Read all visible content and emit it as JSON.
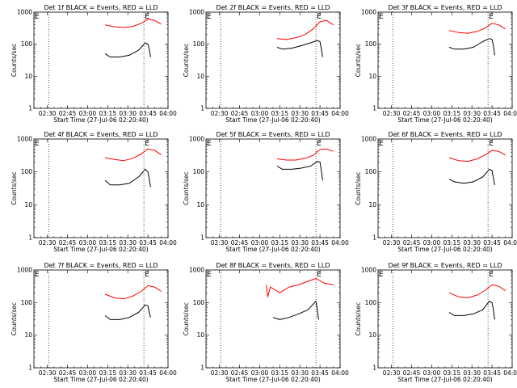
{
  "chart_data": [
    {
      "type": "line",
      "title": "Det 1f BLACK = Events, RED = LLD",
      "ylabel": "Counts/sec",
      "xlabel": "Start Time (27-Jul-06 02:20:40)",
      "x_ticks": [
        "02:30",
        "02:45",
        "03:00",
        "03:15",
        "03:30",
        "03:45",
        "04:00"
      ],
      "y_ticks": [
        "1",
        "10",
        "100",
        "1000"
      ],
      "yscale": "log",
      "ylim": [
        1,
        1000
      ],
      "xlim": [
        "02:20",
        "04:00"
      ],
      "markers": [
        "E",
        "E"
      ],
      "vlines": [
        "02:31",
        "03:42"
      ],
      "series": [
        {
          "color": "#ff0000",
          "x": [
            "03:13",
            "03:20",
            "03:27",
            "03:34",
            "03:40",
            "03:45",
            "03:50",
            "03:55"
          ],
          "y": [
            400,
            350,
            330,
            360,
            450,
            600,
            550,
            420
          ]
        },
        {
          "color": "#000000",
          "x": [
            "03:13",
            "03:17",
            "03:24",
            "03:31",
            "03:38",
            "03:43",
            "03:45",
            "03:46",
            "03:47"
          ],
          "y": [
            50,
            40,
            40,
            45,
            65,
            110,
            100,
            70,
            40
          ]
        }
      ]
    },
    {
      "type": "line",
      "title": "Det 2f BLACK = Events, RED = LLD",
      "ylabel": "Counts/sec",
      "xlabel": "Start Time (27-Jul-06 02:20:40)",
      "x_ticks": [
        "02:30",
        "02:45",
        "03:00",
        "03:15",
        "03:30",
        "03:45",
        "04:00"
      ],
      "y_ticks": [
        "1",
        "10",
        "100",
        "1000"
      ],
      "yscale": "log",
      "ylim": [
        1,
        1000
      ],
      "xlim": [
        "02:20",
        "04:00"
      ],
      "markers": [
        "E",
        "E"
      ],
      "vlines": [
        "02:31",
        "03:42"
      ],
      "series": [
        {
          "color": "#ff0000",
          "x": [
            "03:13",
            "03:20",
            "03:27",
            "03:34",
            "03:40",
            "03:45",
            "03:50",
            "03:55"
          ],
          "y": [
            150,
            140,
            160,
            200,
            300,
            500,
            550,
            400
          ]
        },
        {
          "color": "#000000",
          "x": [
            "03:13",
            "03:17",
            "03:24",
            "03:31",
            "03:38",
            "03:43",
            "03:45",
            "03:46",
            "03:47"
          ],
          "y": [
            80,
            70,
            75,
            90,
            110,
            130,
            120,
            70,
            40
          ]
        }
      ]
    },
    {
      "type": "line",
      "title": "Det 3f BLACK = Events, RED = LLD",
      "ylabel": "Counts/sec",
      "xlabel": "Start Time (27-Jul-06 02:20:40)",
      "x_ticks": [
        "02:30",
        "02:45",
        "03:00",
        "03:15",
        "03:30",
        "03:45",
        "04:00"
      ],
      "y_ticks": [
        "1",
        "10",
        "100",
        "1000"
      ],
      "yscale": "log",
      "ylim": [
        1,
        1000
      ],
      "xlim": [
        "02:20",
        "04:00"
      ],
      "markers": [
        "E",
        "E"
      ],
      "vlines": [
        "02:31",
        "03:42"
      ],
      "series": [
        {
          "color": "#ff0000",
          "x": [
            "03:13",
            "03:20",
            "03:27",
            "03:34",
            "03:40",
            "03:45",
            "03:50",
            "03:55"
          ],
          "y": [
            270,
            230,
            220,
            250,
            320,
            450,
            400,
            300
          ]
        },
        {
          "color": "#000000",
          "x": [
            "03:13",
            "03:17",
            "03:24",
            "03:31",
            "03:38",
            "03:43",
            "03:45",
            "03:46",
            "03:47"
          ],
          "y": [
            80,
            70,
            70,
            80,
            120,
            150,
            140,
            90,
            45
          ]
        }
      ]
    },
    {
      "type": "line",
      "title": "Det 4f BLACK = Events, RED = LLD",
      "ylabel": "Counts/sec",
      "xlabel": "Start Time (27-Jul-06 02:20:40)",
      "x_ticks": [
        "02:30",
        "02:45",
        "03:00",
        "03:15",
        "03:30",
        "03:45",
        "04:00"
      ],
      "y_ticks": [
        "1",
        "10",
        "100",
        "1000"
      ],
      "yscale": "log",
      "ylim": [
        1,
        1000
      ],
      "xlim": [
        "02:20",
        "04:00"
      ],
      "markers": [
        "E",
        "E"
      ],
      "vlines": [
        "02:31",
        "03:42"
      ],
      "series": [
        {
          "color": "#ff0000",
          "x": [
            "03:13",
            "03:20",
            "03:27",
            "03:34",
            "03:40",
            "03:45",
            "03:50",
            "03:55"
          ],
          "y": [
            270,
            240,
            220,
            260,
            350,
            500,
            450,
            330
          ]
        },
        {
          "color": "#000000",
          "x": [
            "03:13",
            "03:17",
            "03:24",
            "03:31",
            "03:38",
            "03:43",
            "03:45",
            "03:46",
            "03:47"
          ],
          "y": [
            55,
            40,
            40,
            45,
            70,
            120,
            100,
            60,
            35
          ]
        }
      ]
    },
    {
      "type": "line",
      "title": "Det 5f BLACK = Events, RED = LLD",
      "ylabel": "Counts/sec",
      "xlabel": "Start Time (27-Jul-06 02:20:40)",
      "x_ticks": [
        "02:30",
        "02:45",
        "03:00",
        "03:15",
        "03:30",
        "03:45",
        "04:00"
      ],
      "y_ticks": [
        "1",
        "10",
        "100",
        "1000"
      ],
      "yscale": "log",
      "ylim": [
        1,
        1000
      ],
      "xlim": [
        "02:20",
        "04:00"
      ],
      "markers": [
        "E",
        "E"
      ],
      "vlines": [
        "02:31",
        "03:42"
      ],
      "series": [
        {
          "color": "#ff0000",
          "x": [
            "03:13",
            "03:20",
            "03:27",
            "03:34",
            "03:40",
            "03:45",
            "03:50",
            "03:55"
          ],
          "y": [
            250,
            230,
            230,
            260,
            320,
            480,
            500,
            420
          ]
        },
        {
          "color": "#000000",
          "x": [
            "03:13",
            "03:17",
            "03:24",
            "03:31",
            "03:38",
            "03:43",
            "03:45",
            "03:46",
            "03:47"
          ],
          "y": [
            150,
            120,
            120,
            130,
            150,
            210,
            200,
            110,
            55
          ]
        }
      ]
    },
    {
      "type": "line",
      "title": "Det 6f BLACK = Events, RED = LLD",
      "ylabel": "Counts/sec",
      "xlabel": "Start Time (27-Jul-06 02:20:40)",
      "x_ticks": [
        "02:30",
        "02:45",
        "03:00",
        "03:15",
        "03:30",
        "03:45",
        "04:00"
      ],
      "y_ticks": [
        "1",
        "10",
        "100",
        "1000"
      ],
      "yscale": "log",
      "ylim": [
        1,
        1000
      ],
      "xlim": [
        "02:20",
        "04:00"
      ],
      "markers": [
        "E",
        "E"
      ],
      "vlines": [
        "02:31",
        "03:42"
      ],
      "series": [
        {
          "color": "#ff0000",
          "x": [
            "03:13",
            "03:20",
            "03:27",
            "03:34",
            "03:40",
            "03:45",
            "03:50",
            "03:55"
          ],
          "y": [
            270,
            220,
            210,
            250,
            330,
            450,
            420,
            320
          ]
        },
        {
          "color": "#000000",
          "x": [
            "03:13",
            "03:17",
            "03:24",
            "03:31",
            "03:38",
            "03:43",
            "03:45",
            "03:46",
            "03:47"
          ],
          "y": [
            60,
            50,
            45,
            50,
            70,
            120,
            110,
            65,
            40
          ]
        }
      ]
    },
    {
      "type": "line",
      "title": "Det 7f BLACK = Events, RED = LLD",
      "ylabel": "Counts/sec",
      "xlabel": "Start Time (27-Jul-06 02:20:40)",
      "x_ticks": [
        "02:30",
        "02:45",
        "03:00",
        "03:15",
        "03:30",
        "03:45",
        "04:00"
      ],
      "y_ticks": [
        "1",
        "10",
        "100",
        "1000"
      ],
      "yscale": "log",
      "ylim": [
        1,
        1000
      ],
      "xlim": [
        "02:20",
        "04:00"
      ],
      "markers": [
        "E",
        "E"
      ],
      "vlines": [
        "02:31",
        "03:42"
      ],
      "series": [
        {
          "color": "#ff0000",
          "x": [
            "03:13",
            "03:20",
            "03:27",
            "03:34",
            "03:40",
            "03:45",
            "03:50",
            "03:55"
          ],
          "y": [
            180,
            140,
            130,
            160,
            220,
            330,
            300,
            220
          ]
        },
        {
          "color": "#000000",
          "x": [
            "03:13",
            "03:17",
            "03:24",
            "03:31",
            "03:38",
            "03:43",
            "03:45",
            "03:46",
            "03:47"
          ],
          "y": [
            40,
            30,
            30,
            35,
            50,
            85,
            80,
            50,
            35
          ]
        }
      ]
    },
    {
      "type": "line",
      "title": "Det 8f BLACK = Events, RED = LLD",
      "ylabel": "Counts/sec",
      "xlabel": "Start Time (27-Jul-06 02:20:40)",
      "x_ticks": [
        "02:30",
        "02:45",
        "03:00",
        "03:15",
        "03:30",
        "03:45",
        "04:00"
      ],
      "y_ticks": [
        "1",
        "10",
        "100",
        "1000"
      ],
      "yscale": "log",
      "ylim": [
        1,
        1000
      ],
      "xlim": [
        "02:20",
        "04:00"
      ],
      "markers": [
        "E",
        "E"
      ],
      "vlines": [
        "02:31",
        "03:42"
      ],
      "series": [
        {
          "color": "#ff0000",
          "x": [
            "03:05",
            "03:06",
            "03:08",
            "03:15",
            "03:22",
            "03:29",
            "03:36",
            "03:42",
            "03:48",
            "03:55"
          ],
          "y": [
            350,
            150,
            300,
            200,
            300,
            350,
            450,
            550,
            400,
            350
          ]
        },
        {
          "color": "#000000",
          "x": [
            "03:10",
            "03:15",
            "03:22",
            "03:29",
            "03:36",
            "03:40",
            "03:42",
            "03:43",
            "03:44"
          ],
          "y": [
            35,
            30,
            35,
            45,
            60,
            90,
            110,
            60,
            30
          ]
        }
      ]
    },
    {
      "type": "line",
      "title": "Det 9f BLACK = Events, RED = LLD",
      "ylabel": "Counts/sec",
      "xlabel": "Start Time (27-Jul-06 02:20:40)",
      "x_ticks": [
        "02:30",
        "02:45",
        "03:00",
        "03:15",
        "03:30",
        "03:45",
        "04:00"
      ],
      "y_ticks": [
        "1",
        "10",
        "100",
        "1000"
      ],
      "yscale": "log",
      "ylim": [
        1,
        1000
      ],
      "xlim": [
        "02:20",
        "04:00"
      ],
      "markers": [
        "E",
        "E"
      ],
      "vlines": [
        "02:31",
        "03:42"
      ],
      "series": [
        {
          "color": "#ff0000",
          "x": [
            "03:13",
            "03:20",
            "03:27",
            "03:34",
            "03:40",
            "03:45",
            "03:50",
            "03:55"
          ],
          "y": [
            200,
            150,
            140,
            170,
            240,
            350,
            320,
            230
          ]
        },
        {
          "color": "#000000",
          "x": [
            "03:13",
            "03:17",
            "03:24",
            "03:31",
            "03:38",
            "03:43",
            "03:45",
            "03:46",
            "03:47"
          ],
          "y": [
            50,
            40,
            40,
            45,
            60,
            110,
            100,
            60,
            30
          ]
        }
      ]
    }
  ]
}
